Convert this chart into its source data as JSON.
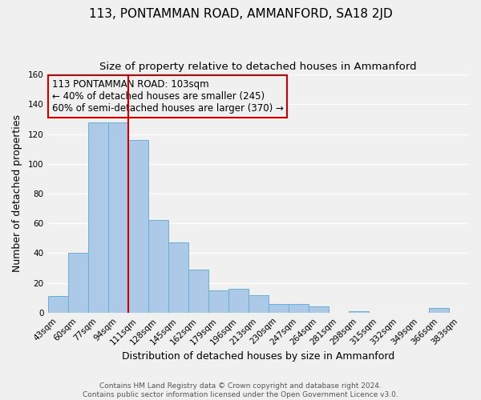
{
  "title": "113, PONTAMMAN ROAD, AMMANFORD, SA18 2JD",
  "subtitle": "Size of property relative to detached houses in Ammanford",
  "xlabel": "Distribution of detached houses by size in Ammanford",
  "ylabel": "Number of detached properties",
  "footer_line1": "Contains HM Land Registry data © Crown copyright and database right 2024.",
  "footer_line2": "Contains public sector information licensed under the Open Government Licence v3.0.",
  "bin_labels": [
    "43sqm",
    "60sqm",
    "77sqm",
    "94sqm",
    "111sqm",
    "128sqm",
    "145sqm",
    "162sqm",
    "179sqm",
    "196sqm",
    "213sqm",
    "230sqm",
    "247sqm",
    "264sqm",
    "281sqm",
    "298sqm",
    "315sqm",
    "332sqm",
    "349sqm",
    "366sqm",
    "383sqm"
  ],
  "bar_values": [
    11,
    40,
    128,
    128,
    116,
    62,
    47,
    29,
    15,
    16,
    12,
    6,
    6,
    4,
    0,
    1,
    0,
    0,
    0,
    3,
    0
  ],
  "bar_color": "#adc9e8",
  "bar_edge_color": "#6aafd6",
  "vline_x_index": 4,
  "vline_color": "#cc0000",
  "annotation_line1": "113 PONTAMMAN ROAD: 103sqm",
  "annotation_line2": "← 40% of detached houses are smaller (245)",
  "annotation_line3": "60% of semi-detached houses are larger (370) →",
  "annotation_box_color": "#cc0000",
  "ylim": [
    0,
    160
  ],
  "yticks": [
    0,
    20,
    40,
    60,
    80,
    100,
    120,
    140,
    160
  ],
  "background_color": "#f0f0f0",
  "grid_color": "#ffffff",
  "title_fontsize": 11,
  "subtitle_fontsize": 9.5,
  "axis_label_fontsize": 9,
  "tick_fontsize": 7.5,
  "annotation_fontsize": 8.5,
  "footer_fontsize": 6.5
}
